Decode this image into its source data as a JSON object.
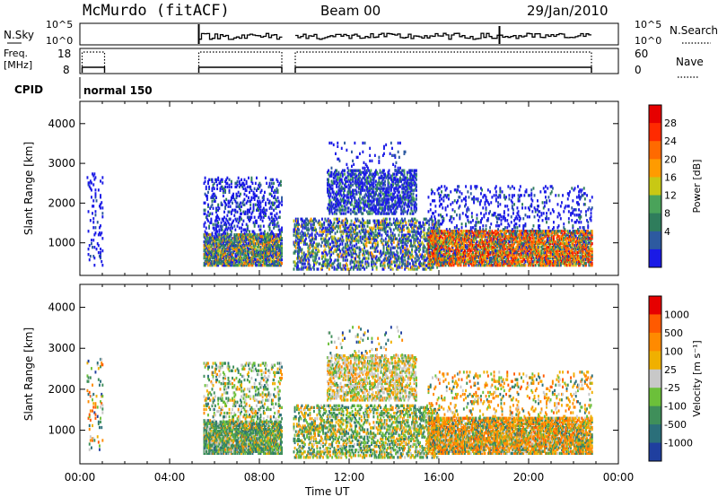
{
  "header": {
    "station": "McMurdo (fitACF)",
    "beam": "Beam 00",
    "date": "29/Jan/2010"
  },
  "panels": {
    "nsky": {
      "left_label": "N.Sky",
      "left_ticks": [
        "10^5",
        "10^0"
      ],
      "right_ticks": [
        "10^5",
        "10^0"
      ],
      "right_label": "N.Search"
    },
    "freq": {
      "left_label_1": "Freq.",
      "left_label_2": "[MHz]",
      "left_ticks": [
        "18",
        "8"
      ],
      "right_ticks": [
        "60",
        "0"
      ],
      "right_label": "Nave"
    },
    "cpid": {
      "label": "CPID",
      "value": "normal 150"
    }
  },
  "chart_data": [
    {
      "type": "heatmap",
      "name": "power-map",
      "ylabel": "Slant Range [km]",
      "yticks": [
        "4000",
        "3000",
        "2000",
        "1000"
      ],
      "ylim": [
        180,
        4560
      ],
      "colorbar_label": "Power [dB]",
      "colorbar_ticks": [
        "28",
        "24",
        "20",
        "16",
        "12",
        "8",
        "4"
      ],
      "colors": [
        "#1a1ae6",
        "#2d5aa0",
        "#2f7d5c",
        "#4aa35a",
        "#c8c814",
        "#ff9b00",
        "#ff6a00",
        "#ff2a00",
        "#e60000"
      ],
      "scatter_regions": [
        {
          "t0": 0.3,
          "t1": 1.0,
          "r0": 400,
          "r1": 2700,
          "density": 0.1,
          "weights": [
            5,
            1,
            0,
            0,
            0,
            0,
            0,
            0,
            0
          ]
        },
        {
          "t0": 5.5,
          "t1": 9.0,
          "r0": 400,
          "r1": 1200,
          "density": 0.75,
          "weights": [
            2,
            2,
            3,
            2,
            1,
            1,
            1,
            0,
            0
          ]
        },
        {
          "t0": 5.5,
          "t1": 9.0,
          "r0": 1200,
          "r1": 2600,
          "density": 0.2,
          "weights": [
            6,
            1,
            1,
            0,
            0,
            0,
            0,
            0,
            0
          ]
        },
        {
          "t0": 9.5,
          "t1": 16.0,
          "r0": 300,
          "r1": 1600,
          "density": 0.35,
          "weights": [
            3,
            2,
            2,
            1,
            1,
            1,
            0,
            0,
            0
          ]
        },
        {
          "t0": 11.0,
          "t1": 15.0,
          "r0": 1700,
          "r1": 2800,
          "density": 0.45,
          "weights": [
            5,
            2,
            1,
            1,
            0,
            0,
            0,
            0,
            0
          ]
        },
        {
          "t0": 11.0,
          "t1": 14.5,
          "r0": 2800,
          "r1": 3500,
          "density": 0.05,
          "weights": [
            4,
            1,
            0,
            0,
            0,
            0,
            0,
            0,
            0
          ]
        },
        {
          "t0": 15.5,
          "t1": 22.8,
          "r0": 400,
          "r1": 1300,
          "density": 0.7,
          "weights": [
            1,
            1,
            2,
            1,
            1,
            2,
            3,
            2,
            1
          ]
        },
        {
          "t0": 15.5,
          "t1": 22.8,
          "r0": 1300,
          "r1": 2400,
          "density": 0.12,
          "weights": [
            6,
            1,
            1,
            0,
            0,
            0,
            0,
            0,
            0
          ]
        }
      ]
    },
    {
      "type": "heatmap",
      "name": "velocity-map",
      "ylabel": "Slant Range [km]",
      "yticks": [
        "4000",
        "3000",
        "2000",
        "1000"
      ],
      "ylim": [
        180,
        4560
      ],
      "colorbar_label": "Velocity [m s⁻¹]",
      "colorbar_ticks": [
        "1000",
        "500",
        "100",
        "25",
        "-25",
        "-100",
        "-500",
        "-1000"
      ],
      "colors": [
        "#1f3f9f",
        "#2b6f7a",
        "#3f8f5a",
        "#6cc03a",
        "#c8c8c8",
        "#f0b000",
        "#ff8a00",
        "#ff5a00",
        "#e60000"
      ],
      "scatter_regions": [
        {
          "t0": 0.3,
          "t1": 1.0,
          "r0": 400,
          "r1": 2700,
          "density": 0.08,
          "weights": [
            1,
            1,
            1,
            1,
            1,
            1,
            2,
            1,
            0
          ]
        },
        {
          "t0": 5.5,
          "t1": 9.0,
          "r0": 400,
          "r1": 1200,
          "density": 0.75,
          "weights": [
            0,
            2,
            5,
            2,
            1,
            1,
            1,
            0,
            0
          ]
        },
        {
          "t0": 5.5,
          "t1": 9.0,
          "r0": 1200,
          "r1": 2600,
          "density": 0.2,
          "weights": [
            0,
            1,
            2,
            2,
            2,
            1,
            1,
            0,
            0
          ]
        },
        {
          "t0": 9.5,
          "t1": 16.0,
          "r0": 300,
          "r1": 1600,
          "density": 0.35,
          "weights": [
            0,
            1,
            3,
            2,
            1,
            2,
            1,
            0,
            0
          ]
        },
        {
          "t0": 11.0,
          "t1": 15.0,
          "r0": 1700,
          "r1": 2800,
          "density": 0.45,
          "weights": [
            0,
            0,
            1,
            2,
            4,
            2,
            2,
            0,
            0
          ]
        },
        {
          "t0": 11.0,
          "t1": 14.5,
          "r0": 2800,
          "r1": 3500,
          "density": 0.05,
          "weights": [
            1,
            1,
            1,
            1,
            1,
            1,
            1,
            0,
            0
          ]
        },
        {
          "t0": 15.5,
          "t1": 22.8,
          "r0": 400,
          "r1": 1300,
          "density": 0.7,
          "weights": [
            0,
            1,
            2,
            1,
            1,
            2,
            5,
            1,
            0
          ]
        },
        {
          "t0": 15.5,
          "t1": 22.8,
          "r0": 1300,
          "r1": 2400,
          "density": 0.12,
          "weights": [
            0,
            1,
            1,
            1,
            1,
            3,
            3,
            1,
            0
          ]
        }
      ]
    }
  ],
  "x_axis": {
    "label": "Time UT",
    "ticks": [
      "00:00",
      "04:00",
      "08:00",
      "12:00",
      "16:00",
      "20:00",
      "00:00"
    ],
    "range_hours": [
      0,
      24
    ]
  }
}
